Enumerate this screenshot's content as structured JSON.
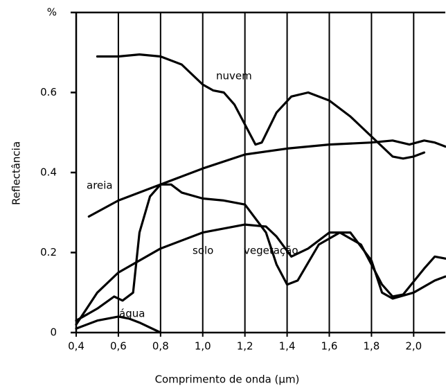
{
  "chart_data": {
    "type": "line",
    "x_label": "Comprimento de onda (μm)",
    "y_label": "Reflectância",
    "xlim": [
      0.4,
      2.15
    ],
    "ylim": [
      0,
      0.8
    ],
    "xticks": [
      {
        "value": 0.4,
        "label": "0,4"
      },
      {
        "value": 0.6,
        "label": "0,6"
      },
      {
        "value": 0.8,
        "label": "0,8"
      },
      {
        "value": 1.0,
        "label": "1,0"
      },
      {
        "value": 1.2,
        "label": "1,2"
      },
      {
        "value": 1.4,
        "label": "1,4"
      },
      {
        "value": 1.6,
        "label": "1,6"
      },
      {
        "value": 1.8,
        "label": "1,8"
      },
      {
        "value": 2.0,
        "label": "2,0"
      }
    ],
    "yticks": [
      0,
      0.2,
      0.4,
      0.6,
      {
        "value": 0.8,
        "label": "%"
      }
    ],
    "grid": true,
    "series": [
      {
        "name": "nuvem",
        "color": "#000000",
        "x": [
          0.5,
          0.6,
          0.7,
          0.8,
          0.9,
          1.0,
          1.05,
          1.1,
          1.15,
          1.2,
          1.25,
          1.28,
          1.35,
          1.42,
          1.5,
          1.6,
          1.7,
          1.8,
          1.9,
          1.95,
          2.0,
          2.05
        ],
        "values": [
          0.69,
          0.69,
          0.695,
          0.69,
          0.67,
          0.62,
          0.605,
          0.6,
          0.57,
          0.52,
          0.47,
          0.475,
          0.55,
          0.59,
          0.6,
          0.58,
          0.54,
          0.49,
          0.44,
          0.435,
          0.44,
          0.45
        ]
      },
      {
        "name": "areia",
        "color": "#000000",
        "x": [
          0.46,
          0.6,
          0.8,
          1.0,
          1.2,
          1.4,
          1.6,
          1.8,
          1.9,
          1.98,
          2.05,
          2.1,
          2.15
        ],
        "values": [
          0.29,
          0.33,
          0.37,
          0.41,
          0.445,
          0.46,
          0.47,
          0.475,
          0.48,
          0.47,
          0.48,
          0.475,
          0.465
        ]
      },
      {
        "name": "vegetação",
        "color": "#000000",
        "x": [
          0.4,
          0.5,
          0.58,
          0.62,
          0.67,
          0.7,
          0.75,
          0.8,
          0.85,
          0.9,
          1.0,
          1.1,
          1.2,
          1.3,
          1.35,
          1.4,
          1.45,
          1.55,
          1.65,
          1.75,
          1.85,
          1.9,
          1.95,
          2.05,
          2.1,
          2.15
        ],
        "values": [
          0.03,
          0.06,
          0.09,
          0.08,
          0.1,
          0.25,
          0.34,
          0.37,
          0.37,
          0.35,
          0.335,
          0.33,
          0.32,
          0.25,
          0.17,
          0.12,
          0.13,
          0.22,
          0.25,
          0.22,
          0.12,
          0.09,
          0.095,
          0.16,
          0.19,
          0.185
        ]
      },
      {
        "name": "solo",
        "color": "#000000",
        "x": [
          0.4,
          0.5,
          0.6,
          0.8,
          1.0,
          1.2,
          1.3,
          1.35,
          1.42,
          1.5,
          1.6,
          1.7,
          1.8,
          1.85,
          1.9,
          2.0,
          2.1,
          2.15
        ],
        "values": [
          0.02,
          0.1,
          0.15,
          0.21,
          0.25,
          0.27,
          0.265,
          0.24,
          0.19,
          0.21,
          0.25,
          0.25,
          0.18,
          0.1,
          0.085,
          0.1,
          0.13,
          0.14
        ]
      },
      {
        "name": "água",
        "color": "#000000",
        "x": [
          0.4,
          0.5,
          0.6,
          0.65,
          0.7,
          0.8
        ],
        "values": [
          0.01,
          0.03,
          0.04,
          0.035,
          0.025,
          0.0
        ]
      }
    ]
  }
}
